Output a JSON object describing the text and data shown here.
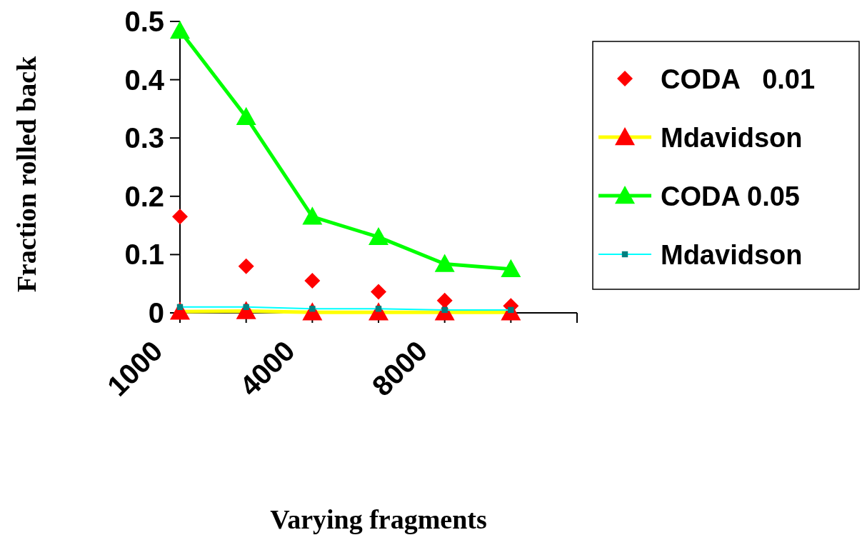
{
  "chart_data": {
    "type": "line",
    "xlabel": "Varying fragments",
    "ylabel": "Fraction rolled back",
    "categories": [
      "1000",
      null,
      "4000",
      null,
      "8000",
      null,
      null
    ],
    "ylim": [
      0,
      0.5
    ],
    "yticks": [
      0,
      0.1,
      0.2,
      0.3,
      0.4,
      0.5
    ],
    "grid": false,
    "legend": "right",
    "series": [
      {
        "name": "CODA   0.01",
        "type": "scatter",
        "marker": "diamond",
        "color": "#ff0000",
        "values": [
          0.165,
          0.08,
          0.055,
          0.036,
          0.021,
          0.012,
          null
        ]
      },
      {
        "name": "Mdavidson",
        "type": "line",
        "marker": "triangle",
        "color": "#ffff00",
        "colors": [
          "#ff0000",
          "#ff0000",
          "#ff0000",
          "#ff0000",
          "#ff0000",
          "#ff0000",
          null
        ],
        "values": [
          0.002,
          0.003,
          0.001,
          0.001,
          0.001,
          0.001,
          null
        ]
      },
      {
        "name": "CODA 0.05",
        "type": "line",
        "marker": "triangle",
        "color": "#00ff00",
        "values": [
          0.484,
          0.336,
          0.165,
          0.13,
          0.084,
          0.075,
          null
        ]
      },
      {
        "name": "Mdavidson",
        "type": "line",
        "marker": "square",
        "color": "#00ffff",
        "colors": [
          "#008080",
          "#008080",
          "#008080",
          "#008080",
          "#008080",
          "#008080",
          null
        ],
        "values": [
          0.01,
          0.01,
          0.007,
          0.007,
          0.005,
          0.005,
          null
        ]
      }
    ]
  }
}
